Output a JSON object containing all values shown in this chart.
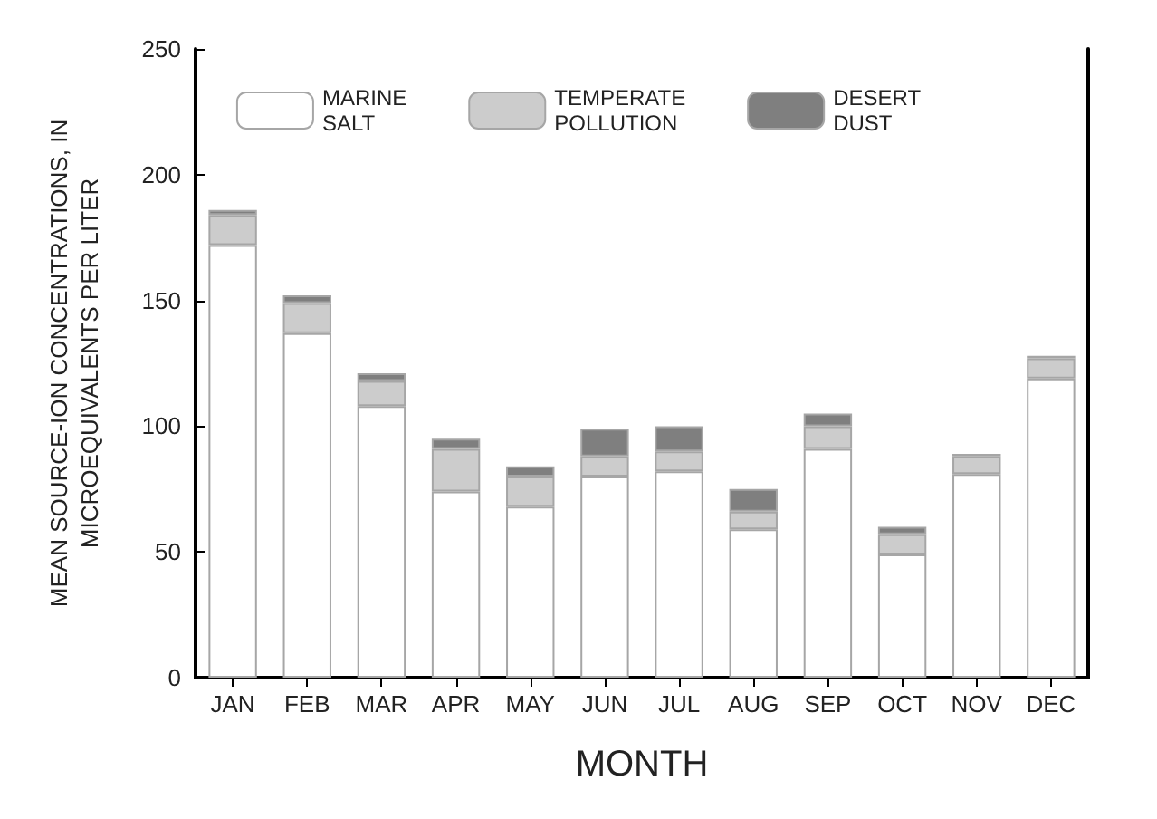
{
  "chart_data": {
    "type": "bar",
    "xlabel": "MONTH",
    "ylabel": "MEAN SOURCE-ION CONCENTRATIONS, IN\nMICROEQUIVALENTS PER LITER",
    "categories": [
      "JAN",
      "FEB",
      "MAR",
      "APR",
      "MAY",
      "JUN",
      "JUL",
      "AUG",
      "SEP",
      "OCT",
      "NOV",
      "DEC"
    ],
    "stacked": true,
    "series": [
      {
        "name": "MARINE\nSALT",
        "color": "#ffffff",
        "values": [
          172,
          137,
          108,
          74,
          68,
          80,
          82,
          59,
          91,
          49,
          81,
          119
        ]
      },
      {
        "name": "TEMPERATE\nPOLLUTION",
        "color": "#cccccc",
        "values": [
          12,
          12,
          10,
          17,
          12,
          8,
          8,
          7,
          9,
          8,
          7,
          8
        ]
      },
      {
        "name": "DESERT\nDUST",
        "color": "#7f7f7f",
        "values": [
          2,
          3,
          3,
          4,
          4,
          11,
          10,
          9,
          5,
          3,
          1,
          1
        ]
      }
    ],
    "ylim": [
      0,
      250
    ],
    "yticks": [
      0,
      50,
      100,
      150,
      200,
      250
    ],
    "grid": false,
    "legend": "top"
  }
}
